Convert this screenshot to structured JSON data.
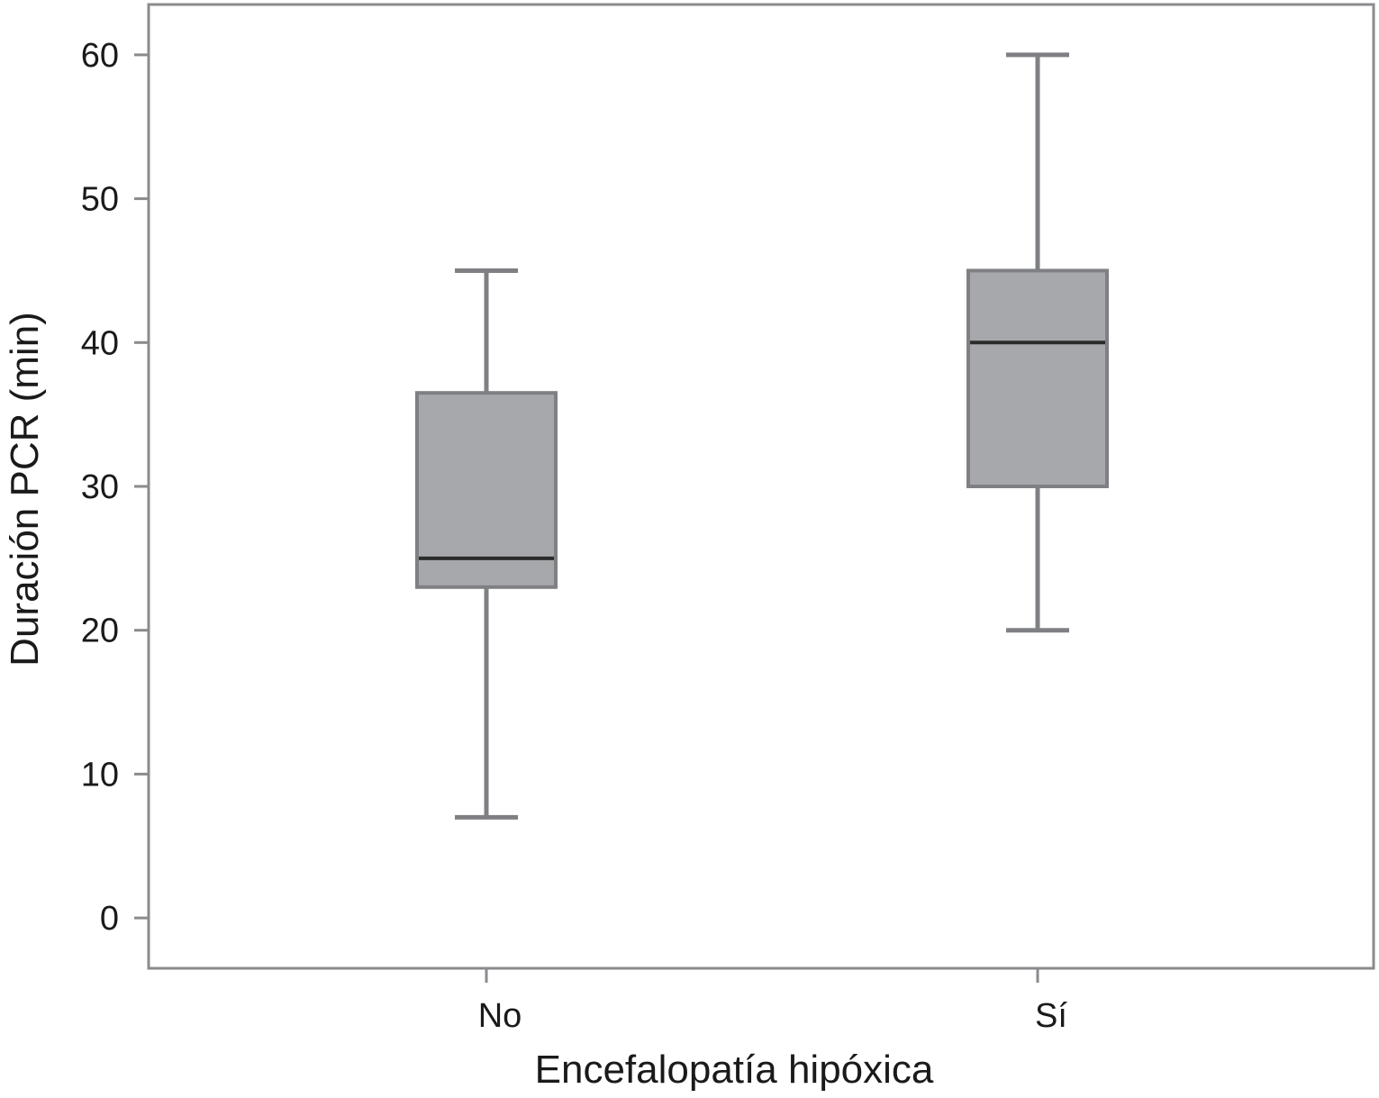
{
  "chart_data": {
    "type": "box",
    "xlabel": "Encefalopatía hipóxica",
    "ylabel": "Duración PCR (min)",
    "categories": [
      "No",
      "Sí"
    ],
    "ylim": [
      -3.5,
      63.5
    ],
    "yticks": [
      0,
      10,
      20,
      30,
      40,
      50,
      60
    ],
    "grid": false,
    "boxes": [
      {
        "category": "No",
        "whisker_low": 7,
        "q1": 23,
        "median": 25,
        "q3": 36.5,
        "whisker_high": 45
      },
      {
        "category": "Sí",
        "whisker_low": 20,
        "q1": 30,
        "median": 40,
        "q3": 45,
        "whisker_high": 60
      }
    ],
    "colors": {
      "box_fill": "#a7a8ab",
      "box_stroke": "#7f8084",
      "whisker": "#7f8084",
      "median": "#2b2b2b",
      "frame": "#8a8b8e"
    }
  }
}
